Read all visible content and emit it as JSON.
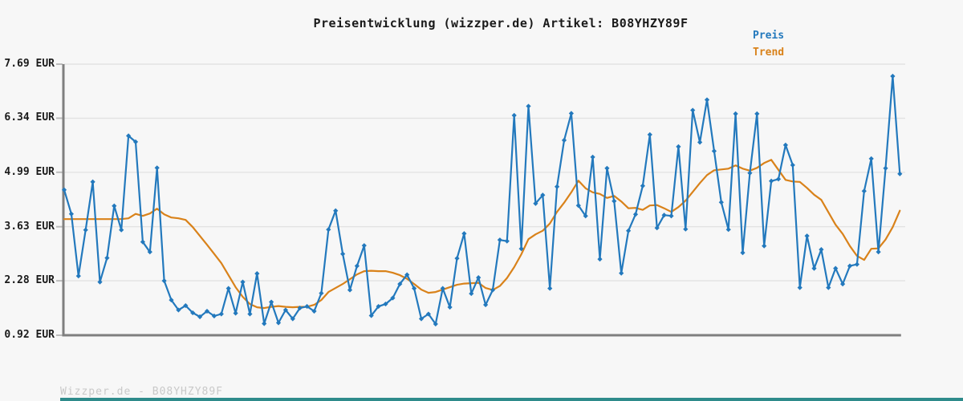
{
  "title": "Preisentwicklung (wizzper.de) Artikel: B08YHZY89F",
  "legend": {
    "price_label": "Preis",
    "trend_label": "Trend"
  },
  "footer": "Wizzper.de - B08YHZY89F",
  "colors": {
    "price": "#2379bd",
    "trend": "#d9821a",
    "grid": "#e3e3e3",
    "tick": "#bdbdbd",
    "spine": "#7f7f7f",
    "background": "#f7f7f7",
    "label_text": "#1a1a1a",
    "footer_text": "#c9c9c9",
    "bottom_bar": "#2e8b8b"
  },
  "y_axis": {
    "labels": [
      "7.69 EUR",
      "6.34 EUR",
      "4.99 EUR",
      "3.63 EUR",
      "2.28 EUR",
      "0.92 EUR"
    ],
    "values": [
      7.69,
      6.34,
      4.99,
      3.63,
      2.28,
      0.92
    ]
  },
  "x_axis": {
    "tick_labels_visible": false
  },
  "chart_data": {
    "type": "line",
    "title": "Preisentwicklung (wizzper.de) Artikel: B08YHZY89F",
    "ylabel": "",
    "xlabel": "",
    "unit": "EUR",
    "ylim": [
      0.92,
      7.69
    ],
    "grid": "horizontal",
    "legend_position": "top-right",
    "n_points": 118,
    "series": [
      {
        "name": "Preis",
        "marker": "diamond",
        "values": [
          4.55,
          3.95,
          2.4,
          3.55,
          4.75,
          2.25,
          2.85,
          4.15,
          3.55,
          5.9,
          5.75,
          3.25,
          3.0,
          5.1,
          2.28,
          1.8,
          1.55,
          1.66,
          1.48,
          1.38,
          1.52,
          1.4,
          1.45,
          2.09,
          1.47,
          2.25,
          1.45,
          2.46,
          1.21,
          1.75,
          1.23,
          1.55,
          1.33,
          1.6,
          1.64,
          1.52,
          1.97,
          3.56,
          4.03,
          2.95,
          2.05,
          2.65,
          3.16,
          1.41,
          1.64,
          1.7,
          1.85,
          2.2,
          2.43,
          2.09,
          1.33,
          1.45,
          1.2,
          2.09,
          1.62,
          2.84,
          3.46,
          1.96,
          2.36,
          1.68,
          2.05,
          3.3,
          3.27,
          6.41,
          3.08,
          6.64,
          4.21,
          4.42,
          2.09,
          4.63,
          5.79,
          6.46,
          4.16,
          3.9,
          5.37,
          2.82,
          5.09,
          4.27,
          2.47,
          3.53,
          3.94,
          4.65,
          5.93,
          3.6,
          3.92,
          3.9,
          5.63,
          3.57,
          6.54,
          5.74,
          6.8,
          5.52,
          4.24,
          3.56,
          6.45,
          2.98,
          4.97,
          6.45,
          3.15,
          4.77,
          4.82,
          5.67,
          5.17,
          2.11,
          3.4,
          2.59,
          3.06,
          2.11,
          2.59,
          2.2,
          2.65,
          2.69,
          4.52,
          5.33,
          3.0,
          5.09,
          7.39,
          4.95
        ]
      },
      {
        "name": "Trend",
        "marker": "none",
        "values": [
          3.82,
          3.82,
          3.82,
          3.82,
          3.82,
          3.82,
          3.82,
          3.82,
          3.82,
          3.84,
          3.95,
          3.9,
          3.96,
          4.08,
          3.94,
          3.86,
          3.84,
          3.8,
          3.62,
          3.4,
          3.18,
          2.95,
          2.72,
          2.42,
          2.12,
          1.88,
          1.7,
          1.62,
          1.6,
          1.63,
          1.65,
          1.63,
          1.62,
          1.63,
          1.63,
          1.68,
          1.8,
          2.0,
          2.1,
          2.2,
          2.32,
          2.44,
          2.52,
          2.53,
          2.52,
          2.52,
          2.48,
          2.42,
          2.33,
          2.2,
          2.06,
          1.98,
          2.0,
          2.06,
          2.12,
          2.18,
          2.21,
          2.22,
          2.23,
          2.1,
          2.05,
          2.15,
          2.35,
          2.62,
          2.94,
          3.32,
          3.44,
          3.53,
          3.71,
          4.0,
          4.23,
          4.49,
          4.78,
          4.59,
          4.49,
          4.45,
          4.35,
          4.4,
          4.26,
          4.09,
          4.1,
          4.05,
          4.16,
          4.17,
          4.09,
          4.0,
          4.12,
          4.28,
          4.5,
          4.72,
          4.92,
          5.04,
          5.06,
          5.08,
          5.16,
          5.08,
          5.03,
          5.1,
          5.22,
          5.3,
          5.05,
          4.8,
          4.76,
          4.75,
          4.6,
          4.43,
          4.3,
          3.99,
          3.68,
          3.45,
          3.15,
          2.9,
          2.8,
          3.08,
          3.09,
          3.31,
          3.62,
          4.03
        ]
      }
    ]
  }
}
